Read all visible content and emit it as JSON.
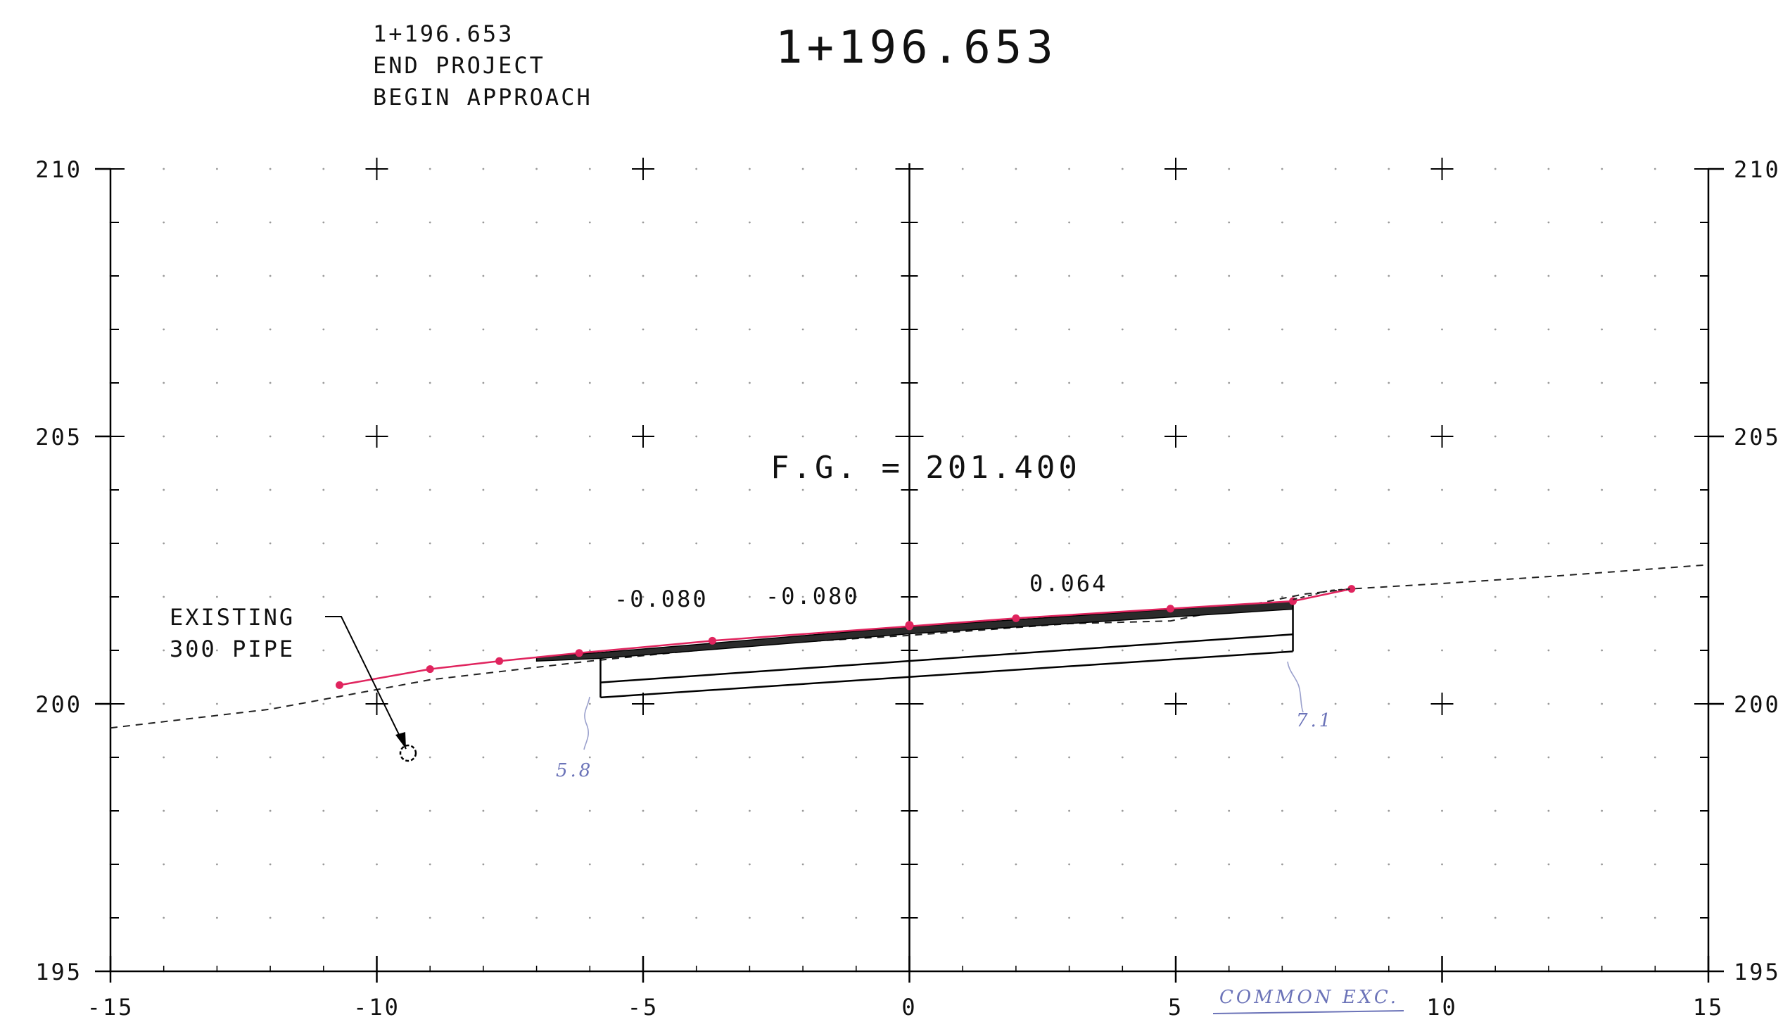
{
  "header": {
    "station_note": [
      "1+196.653",
      "END PROJECT",
      "BEGIN APPROACH"
    ],
    "station_title": "1+196.653"
  },
  "design": {
    "finish_grade_label": "F.G. = 201.400",
    "slopes": [
      "-0.080",
      "-0.080",
      "0.064"
    ]
  },
  "notes": {
    "pipe_label": [
      "EXISTING",
      "300 PIPE"
    ],
    "handwritten": [
      "5.8",
      "7.1",
      "COMMON EXC."
    ]
  },
  "colors": {
    "grid_dot": "#9a9a9a",
    "axis": "#000000",
    "markup_red": "#e0245e",
    "markup_blue": "#6b73b8",
    "pavement_fill": "#2b2b2b"
  },
  "chart_data": {
    "type": "line",
    "xlabel": "",
    "ylabel": "",
    "x_ticks": [
      -15,
      -10,
      -5,
      0,
      5,
      10,
      15
    ],
    "y_ticks": [
      195,
      200,
      205,
      210
    ],
    "xlim": [
      -15,
      15
    ],
    "ylim": [
      195,
      210
    ],
    "grid": true,
    "series": [
      {
        "style": "dashed",
        "x": [
          -15,
          -12,
          -9,
          -6,
          -3,
          0,
          3,
          4.9,
          7.4,
          8.3,
          10,
          12,
          15
        ],
        "y": [
          199.55,
          199.9,
          200.45,
          200.8,
          201.1,
          201.28,
          201.5,
          201.55,
          202.05,
          202.15,
          202.25,
          202.38,
          202.6
        ]
      },
      {
        "style": "solid",
        "x": [
          -10.7,
          -9,
          -7.7,
          -6.2,
          -3.7,
          0,
          2,
          4.9,
          7.2,
          8.3
        ],
        "y": [
          200.35,
          200.65,
          200.8,
          200.95,
          201.18,
          201.45,
          201.6,
          201.78,
          201.92,
          202.15
        ]
      },
      {
        "style": "solid",
        "x": [
          -7.0,
          -5.8,
          0,
          7.2
        ],
        "y": [
          200.8,
          200.85,
          201.31,
          201.77
        ]
      },
      {
        "style": "solid",
        "x": [
          -7.0,
          -5.8,
          0,
          7.2
        ],
        "y": [
          200.87,
          200.96,
          201.44,
          201.92
        ]
      },
      {
        "style": "solid",
        "x": [
          -5.8,
          7.2
        ],
        "y": [
          200.4,
          201.3
        ]
      },
      {
        "style": "solid",
        "x": [
          -5.8,
          7.2
        ],
        "y": [
          200.12,
          200.98
        ]
      }
    ]
  }
}
